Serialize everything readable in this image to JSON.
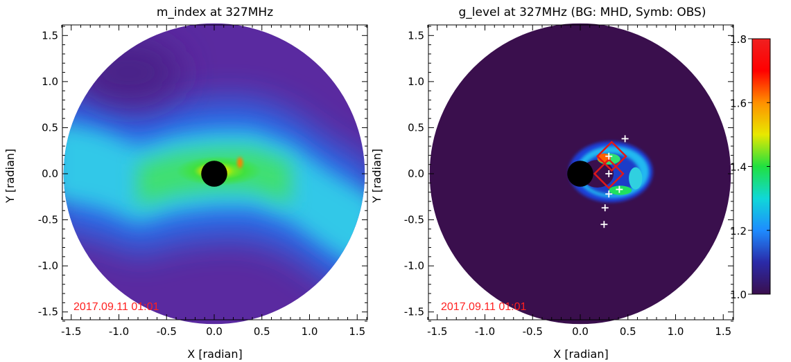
{
  "colors": {
    "timestamp": "#ff2020",
    "background_level": "#3a0f4d",
    "sun_disk": "#000000",
    "observation_symbols": "#ffffff",
    "source_boxes": "#e01818"
  },
  "chart_data": [
    {
      "type": "heatmap",
      "title": "m_index at 327MHz",
      "xlabel": "X [radian]",
      "ylabel": "Y [radian]",
      "xlim": [
        -1.6,
        1.6
      ],
      "ylim": [
        -1.6,
        1.6
      ],
      "xticks": [
        "-1.5",
        "-1.0",
        "-0.5",
        "0.0",
        "0.5",
        "1.0",
        "1.5"
      ],
      "yticks": [
        "-1.5",
        "-1.0",
        "-0.5",
        "0.0",
        "0.5",
        "1.0",
        "1.5"
      ],
      "field_radius": 1.58,
      "occulter_radius": 0.1,
      "timestamp": "2017.09.11 01:01",
      "map_description": "Dense green-yellow band along the equatorial streamer, tilted S-shape, fading to blue and purple at high latitudes"
    },
    {
      "type": "heatmap",
      "title": "g_level at 327MHz (BG: MHD, Symb: OBS)",
      "xlabel": "X [radian]",
      "ylabel": "Y [radian]",
      "xlim": [
        -1.6,
        1.6
      ],
      "ylim": [
        -1.6,
        1.6
      ],
      "xticks": [
        "-1.5",
        "-1.0",
        "-0.5",
        "0.0",
        "0.5",
        "1.0",
        "1.5"
      ],
      "yticks": [
        "-1.5",
        "-1.0",
        "-0.5",
        "0.0",
        "0.5",
        "1.0",
        "1.5"
      ],
      "field_radius": 1.58,
      "occulter_radius": 0.1,
      "timestamp": "2017.09.11 01:01",
      "background_level": 1.0,
      "obs_points": [
        {
          "x": 0.47,
          "y": 0.38
        },
        {
          "x": 0.3,
          "y": 0.19
        },
        {
          "x": 0.3,
          "y": 0.0
        },
        {
          "x": 0.41,
          "y": -0.17
        },
        {
          "x": 0.3,
          "y": -0.22
        },
        {
          "x": 0.26,
          "y": -0.37
        },
        {
          "x": 0.25,
          "y": -0.55
        }
      ],
      "source_boxes": [
        {
          "x": 0.33,
          "y": 0.19,
          "half_size": 0.15
        },
        {
          "x": 0.3,
          "y": 0.0,
          "half_size": 0.15
        }
      ]
    }
  ],
  "colorbar": {
    "min": 1.0,
    "max": 1.8,
    "ticks": [
      "1.0",
      "1.2",
      "1.4",
      "1.6",
      "1.8"
    ],
    "tick_values": [
      1.0,
      1.2,
      1.4,
      1.6,
      1.8
    ],
    "stops": [
      "#3a0f4d",
      "#2a2aa8",
      "#1e8cff",
      "#10d8d8",
      "#20e040",
      "#e8e800",
      "#ff9000",
      "#ff0000",
      "#f02020"
    ]
  }
}
